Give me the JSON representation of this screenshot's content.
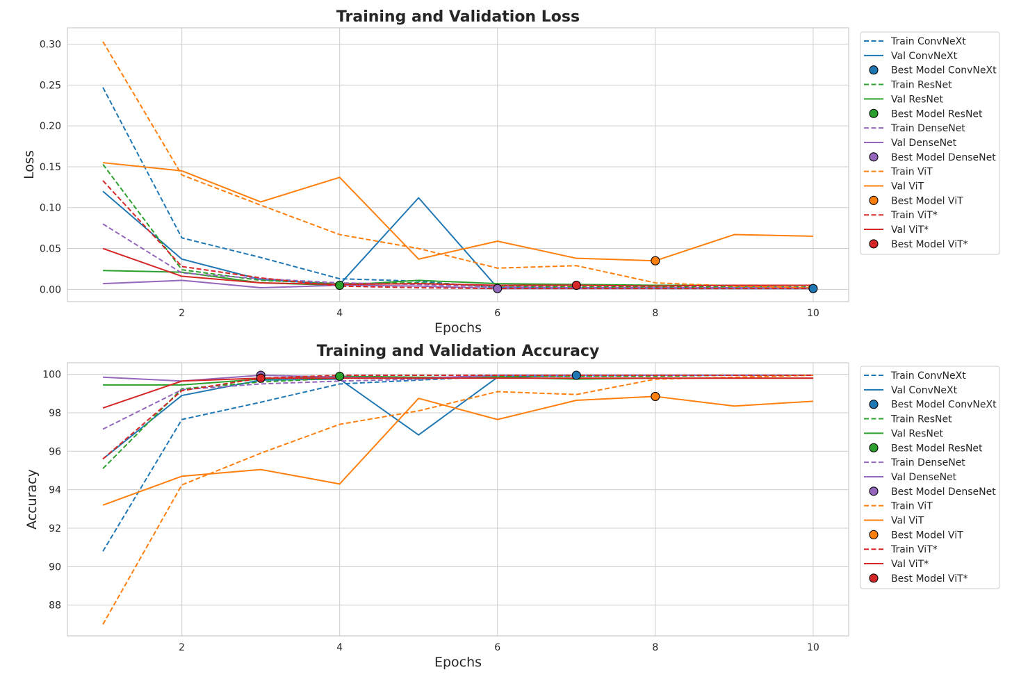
{
  "colors": {
    "ConvNeXt": "#1f77b4",
    "ResNet": "#2ca02c",
    "DenseNet": "#9467bd",
    "ViT": "#ff7f0e",
    "ViT*": "#d62728",
    "grid": "#cccccc",
    "text": "#262626"
  },
  "chart_data": [
    {
      "type": "line",
      "title": "Training and Validation Loss",
      "xlabel": "Epochs",
      "ylabel": "Loss",
      "xlim": [
        0.55,
        10.45
      ],
      "ylim": [
        -0.015,
        0.32
      ],
      "xticks": [
        2,
        4,
        6,
        8,
        10
      ],
      "yticks": [
        0.0,
        0.05,
        0.1,
        0.15,
        0.2,
        0.25,
        0.3
      ],
      "ytick_labels": [
        "0.00",
        "0.05",
        "0.10",
        "0.15",
        "0.20",
        "0.25",
        "0.30"
      ],
      "grid": true,
      "legend_position": "outside-right",
      "x": [
        1,
        2,
        3,
        4,
        5,
        6,
        7,
        8,
        9,
        10
      ],
      "series": [
        {
          "name": "Train ConvNeXt",
          "model": "ConvNeXt",
          "style": "dashed",
          "values": [
            0.247,
            0.063,
            0.039,
            0.013,
            0.01,
            0.002,
            0.002,
            0.001,
            0.001,
            0.001
          ]
        },
        {
          "name": "Val ConvNeXt",
          "model": "ConvNeXt",
          "style": "solid",
          "values": [
            0.12,
            0.037,
            0.012,
            0.006,
            0.112,
            0.002,
            0.002,
            0.002,
            0.001,
            0.001
          ]
        },
        {
          "name": "Train ResNet",
          "model": "ResNet",
          "style": "dashed",
          "values": [
            0.153,
            0.024,
            0.011,
            0.007,
            0.008,
            0.004,
            0.003,
            0.003,
            0.003,
            0.003
          ]
        },
        {
          "name": "Val ResNet",
          "model": "ResNet",
          "style": "solid",
          "values": [
            0.023,
            0.021,
            0.008,
            0.005,
            0.011,
            0.007,
            0.006,
            0.005,
            0.005,
            0.005
          ]
        },
        {
          "name": "Train DenseNet",
          "model": "DenseNet",
          "style": "dashed",
          "values": [
            0.08,
            0.02,
            0.013,
            0.008,
            0.006,
            0.003,
            0.002,
            0.002,
            0.002,
            0.002
          ]
        },
        {
          "name": "Val DenseNet",
          "model": "DenseNet",
          "style": "solid",
          "values": [
            0.007,
            0.011,
            0.002,
            0.005,
            0.004,
            0.001,
            0.001,
            0.001,
            0.001,
            0.001
          ]
        },
        {
          "name": "Train ViT",
          "model": "ViT",
          "style": "dashed",
          "values": [
            0.303,
            0.14,
            0.103,
            0.067,
            0.05,
            0.026,
            0.029,
            0.008,
            0.004,
            0.002
          ]
        },
        {
          "name": "Val ViT",
          "model": "ViT",
          "style": "solid",
          "values": [
            0.155,
            0.145,
            0.107,
            0.137,
            0.037,
            0.059,
            0.038,
            0.035,
            0.067,
            0.065
          ]
        },
        {
          "name": "Train ViT*",
          "model": "ViT*",
          "style": "dashed",
          "values": [
            0.133,
            0.028,
            0.014,
            0.004,
            0.002,
            0.001,
            0.001,
            0.001,
            0.001,
            0.001
          ]
        },
        {
          "name": "Val ViT*",
          "model": "ViT*",
          "style": "solid",
          "values": [
            0.05,
            0.016,
            0.008,
            0.006,
            0.007,
            0.005,
            0.005,
            0.004,
            0.005,
            0.005
          ]
        }
      ],
      "best_models": [
        {
          "name": "Best Model ConvNeXt",
          "model": "ConvNeXt",
          "x": 10,
          "y": 0.001
        },
        {
          "name": "Best Model ResNet",
          "model": "ResNet",
          "x": 4,
          "y": 0.005
        },
        {
          "name": "Best Model DenseNet",
          "model": "DenseNet",
          "x": 6,
          "y": 0.001
        },
        {
          "name": "Best Model ViT",
          "model": "ViT",
          "x": 8,
          "y": 0.035
        },
        {
          "name": "Best Model ViT*",
          "model": "ViT*",
          "x": 7,
          "y": 0.005
        }
      ]
    },
    {
      "type": "line",
      "title": "Training and Validation Accuracy",
      "xlabel": "Epochs",
      "ylabel": "Accuracy",
      "xlim": [
        0.55,
        10.45
      ],
      "ylim": [
        86.4,
        100.6
      ],
      "xticks": [
        2,
        4,
        6,
        8,
        10
      ],
      "yticks": [
        88,
        90,
        92,
        94,
        96,
        98,
        100
      ],
      "ytick_labels": [
        "88",
        "90",
        "92",
        "94",
        "96",
        "98",
        "100"
      ],
      "grid": true,
      "legend_position": "outside-right",
      "x": [
        1,
        2,
        3,
        4,
        5,
        6,
        7,
        8,
        9,
        10
      ],
      "series": [
        {
          "name": "Train ConvNeXt",
          "model": "ConvNeXt",
          "style": "dashed",
          "values": [
            90.8,
            97.65,
            98.55,
            99.5,
            99.7,
            99.9,
            99.9,
            99.95,
            99.95,
            99.95
          ]
        },
        {
          "name": "Val ConvNeXt",
          "model": "ConvNeXt",
          "style": "solid",
          "values": [
            95.6,
            98.9,
            99.7,
            99.75,
            96.85,
            99.85,
            99.95,
            99.95,
            99.95,
            99.95
          ]
        },
        {
          "name": "Train ResNet",
          "model": "ResNet",
          "style": "dashed",
          "values": [
            95.1,
            99.25,
            99.6,
            99.8,
            99.8,
            99.9,
            99.9,
            99.9,
            99.95,
            99.95
          ]
        },
        {
          "name": "Val ResNet",
          "model": "ResNet",
          "style": "solid",
          "values": [
            99.45,
            99.45,
            99.75,
            99.9,
            99.85,
            99.85,
            99.75,
            99.8,
            99.8,
            99.8
          ]
        },
        {
          "name": "Train DenseNet",
          "model": "DenseNet",
          "style": "dashed",
          "values": [
            97.15,
            99.2,
            99.5,
            99.65,
            99.75,
            99.95,
            99.95,
            99.95,
            99.95,
            99.95
          ]
        },
        {
          "name": "Val DenseNet",
          "model": "DenseNet",
          "style": "solid",
          "values": [
            99.85,
            99.65,
            99.95,
            99.85,
            99.8,
            99.95,
            99.95,
            99.95,
            99.95,
            99.95
          ]
        },
        {
          "name": "Train ViT",
          "model": "ViT",
          "style": "dashed",
          "values": [
            87.0,
            94.25,
            95.9,
            97.4,
            98.1,
            99.1,
            98.95,
            99.75,
            99.85,
            99.95
          ]
        },
        {
          "name": "Val ViT",
          "model": "ViT",
          "style": "solid",
          "values": [
            93.2,
            94.7,
            95.05,
            94.3,
            98.75,
            97.65,
            98.65,
            98.85,
            98.35,
            98.6
          ]
        },
        {
          "name": "Train ViT*",
          "model": "ViT*",
          "style": "dashed",
          "values": [
            95.6,
            99.15,
            99.8,
            99.95,
            99.95,
            99.95,
            99.95,
            99.95,
            99.95,
            99.95
          ]
        },
        {
          "name": "Val ViT*",
          "model": "ViT*",
          "style": "solid",
          "values": [
            98.25,
            99.65,
            99.8,
            99.8,
            99.8,
            99.8,
            99.8,
            99.8,
            99.8,
            99.8
          ]
        }
      ],
      "best_models": [
        {
          "name": "Best Model ConvNeXt",
          "model": "ConvNeXt",
          "x": 7,
          "y": 99.95
        },
        {
          "name": "Best Model ResNet",
          "model": "ResNet",
          "x": 4,
          "y": 99.9
        },
        {
          "name": "Best Model DenseNet",
          "model": "DenseNet",
          "x": 3,
          "y": 99.95
        },
        {
          "name": "Best Model ViT",
          "model": "ViT",
          "x": 8,
          "y": 98.85
        },
        {
          "name": "Best Model ViT*",
          "model": "ViT*",
          "x": 3,
          "y": 99.8
        }
      ]
    }
  ],
  "legend_entries": [
    {
      "label": "Train ConvNeXt",
      "kind": "dashed",
      "model": "ConvNeXt"
    },
    {
      "label": "Val ConvNeXt",
      "kind": "solid",
      "model": "ConvNeXt"
    },
    {
      "label": "Best Model ConvNeXt",
      "kind": "marker",
      "model": "ConvNeXt"
    },
    {
      "label": "Train ResNet",
      "kind": "dashed",
      "model": "ResNet"
    },
    {
      "label": "Val ResNet",
      "kind": "solid",
      "model": "ResNet"
    },
    {
      "label": "Best Model ResNet",
      "kind": "marker",
      "model": "ResNet"
    },
    {
      "label": "Train DenseNet",
      "kind": "dashed",
      "model": "DenseNet"
    },
    {
      "label": "Val DenseNet",
      "kind": "solid",
      "model": "DenseNet"
    },
    {
      "label": "Best Model DenseNet",
      "kind": "marker",
      "model": "DenseNet"
    },
    {
      "label": "Train ViT",
      "kind": "dashed",
      "model": "ViT"
    },
    {
      "label": "Val ViT",
      "kind": "solid",
      "model": "ViT"
    },
    {
      "label": "Best Model ViT",
      "kind": "marker",
      "model": "ViT"
    },
    {
      "label": "Train ViT*",
      "kind": "dashed",
      "model": "ViT*"
    },
    {
      "label": "Val ViT*",
      "kind": "solid",
      "model": "ViT*"
    },
    {
      "label": "Best Model ViT*",
      "kind": "marker",
      "model": "ViT*"
    }
  ]
}
